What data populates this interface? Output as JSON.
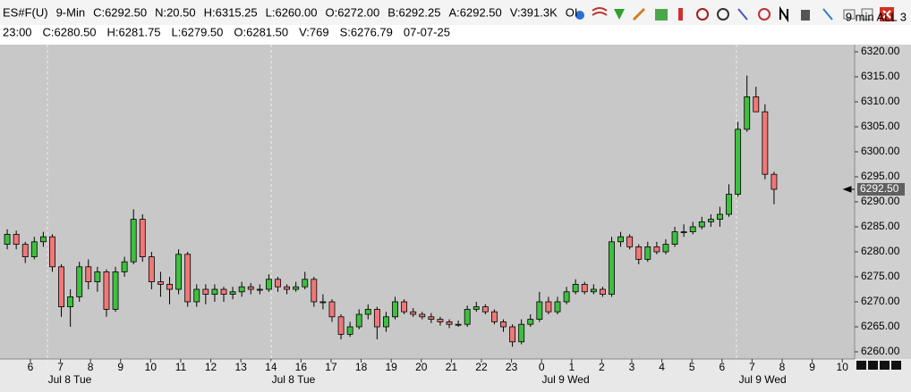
{
  "header": {
    "line1": [
      "ES#F(U)",
      "9-Min",
      "C:6292.50",
      "N:20.50",
      "H:6315.25",
      "L:6260.00",
      "O:6272.00",
      "B:6292.25",
      "A:6292.50",
      "V:391.3K",
      "OI"
    ],
    "line2": [
      "23:00",
      "C:6280.50",
      "H:6281.75",
      "L:6279.50",
      "O:6281.50",
      "V:769",
      "S:6276.79",
      "07-07-25"
    ],
    "right": "9 min ALL 3"
  },
  "chart_data": {
    "type": "candlestick",
    "x": [
      5.23,
      5.53,
      5.83,
      6.13,
      6.43,
      6.73,
      7.03,
      7.33,
      7.63,
      7.93,
      8.23,
      8.53,
      8.83,
      9.13,
      9.43,
      9.73,
      10.03,
      10.33,
      10.63,
      10.93,
      11.23,
      11.53,
      11.83,
      12.13,
      12.43,
      12.73,
      13.03,
      13.33,
      13.63,
      13.93,
      14.23,
      14.53,
      14.83,
      15.13,
      15.43,
      15.73,
      16.03,
      16.33,
      16.63,
      16.93,
      17.23,
      17.53,
      17.83,
      18.13,
      18.43,
      18.73,
      19.03,
      19.33,
      19.63,
      19.93,
      20.23,
      20.53,
      20.83,
      21.13,
      21.43,
      21.73,
      22.03,
      22.33,
      22.63,
      22.93,
      23.23,
      23.53,
      23.83,
      24.13,
      24.43,
      24.73,
      25.03,
      25.33,
      25.63,
      25.93,
      26.23,
      26.53,
      26.83,
      27.13,
      27.43,
      27.73,
      28.03,
      28.33,
      28.63,
      28.93,
      29.23,
      29.53,
      29.83,
      30.13,
      30.43,
      30.73
    ],
    "open": [
      6281.5,
      6283.5,
      6281.5,
      6279,
      6282,
      6283,
      6277,
      6269,
      6271,
      6277,
      6274,
      6276,
      6268.5,
      6276,
      6278,
      6286.5,
      6279,
      6274,
      6273.5,
      6272.5,
      6279.5,
      6270,
      6272.5,
      6271.5,
      6272.5,
      6271.5,
      6272,
      6273,
      6272.5,
      6272.5,
      6274.5,
      6273,
      6272.5,
      6273,
      6274.5,
      6270,
      6270,
      6267,
      6263.5,
      6265,
      6267.5,
      6268.5,
      6265,
      6267,
      6270,
      6268,
      6267.5,
      6267,
      6266.5,
      6266,
      6265.5,
      6265.5,
      6268.5,
      6269,
      6268,
      6266,
      6265,
      6262,
      6265.5,
      6266.5,
      6270,
      6268,
      6270,
      6272,
      6273.5,
      6272,
      6272.5,
      6271.5,
      6282,
      6283,
      6281,
      6278.5,
      6281,
      6280,
      6281.5,
      6284,
      6284,
      6285,
      6286,
      6286.5,
      6287.5,
      6291.5,
      6304.5,
      6311,
      6308,
      6295.5
    ],
    "high": [
      6284.5,
      6284.25,
      6282,
      6283,
      6284,
      6283.5,
      6277.5,
      6272.5,
      6278,
      6278.5,
      6277,
      6276.5,
      6277,
      6279,
      6288.5,
      6287.5,
      6280,
      6276,
      6275,
      6280.5,
      6280,
      6273.5,
      6273.5,
      6273.5,
      6273,
      6273,
      6274,
      6273.75,
      6273.5,
      6275.5,
      6275,
      6273.5,
      6274,
      6276,
      6275,
      6271.5,
      6270.5,
      6267.5,
      6266,
      6268.5,
      6269.5,
      6269,
      6268,
      6271,
      6270.5,
      6268.75,
      6268,
      6267.75,
      6267,
      6266.5,
      6266.25,
      6269.25,
      6270,
      6269.5,
      6268.5,
      6266.5,
      6265.5,
      6266.5,
      6267.5,
      6272,
      6271,
      6271,
      6273,
      6274.5,
      6274,
      6273.5,
      6273,
      6283,
      6284,
      6283.5,
      6281.5,
      6282,
      6282,
      6282.5,
      6285,
      6285.5,
      6286,
      6287,
      6287.5,
      6289,
      6293.5,
      6306,
      6315.25,
      6313,
      6309.5,
      6296
    ],
    "low": [
      6280.5,
      6280.5,
      6277.75,
      6278.5,
      6281,
      6276,
      6267,
      6265,
      6270,
      6272.5,
      6272,
      6267,
      6268,
      6275,
      6277.5,
      6278,
      6272.5,
      6271,
      6269.5,
      6271.5,
      6269,
      6269,
      6269.5,
      6270,
      6270,
      6270.5,
      6271,
      6271.5,
      6271.5,
      6272,
      6272,
      6271.5,
      6272,
      6272.5,
      6269,
      6268.5,
      6266,
      6262.5,
      6263,
      6264.5,
      6266.5,
      6262.5,
      6264,
      6266.5,
      6267.5,
      6267,
      6266.5,
      6265.75,
      6265.25,
      6264.75,
      6265,
      6265,
      6268,
      6267.5,
      6265.5,
      6264,
      6261,
      6261.5,
      6265,
      6266,
      6267.5,
      6267.5,
      6269.5,
      6271.5,
      6271.5,
      6271.5,
      6271,
      6271,
      6281,
      6280.5,
      6277.5,
      6278,
      6279.5,
      6279.5,
      6281,
      6283,
      6283.5,
      6284.5,
      6285,
      6285,
      6287,
      6291,
      6304,
      6308,
      6294.5,
      6289.5
    ],
    "close": [
      6283.5,
      6281.5,
      6279,
      6282,
      6283,
      6277,
      6269,
      6271,
      6277,
      6274,
      6276,
      6268.5,
      6276,
      6278,
      6286.5,
      6279,
      6274,
      6273.5,
      6272.5,
      6279.5,
      6270,
      6272.5,
      6271.5,
      6272.5,
      6271.5,
      6272,
      6273,
      6272.5,
      6272.5,
      6274.5,
      6273,
      6272.5,
      6273,
      6274.5,
      6270,
      6270,
      6267,
      6263.5,
      6265,
      6267.5,
      6268.5,
      6265,
      6267,
      6270,
      6268,
      6267.5,
      6267,
      6266.5,
      6266,
      6265.5,
      6265.5,
      6268.5,
      6269,
      6268,
      6266,
      6265,
      6262,
      6265.5,
      6266.5,
      6270,
      6268,
      6270,
      6272,
      6273.5,
      6272,
      6272.5,
      6271.5,
      6282,
      6283,
      6281,
      6278.5,
      6281,
      6280,
      6281.5,
      6284,
      6284,
      6285,
      6286,
      6286.5,
      6287.5,
      6291.5,
      6304.5,
      6311,
      6308,
      6295.5,
      6292.5
    ],
    "up_color": "#3fbf3f",
    "down_color": "#f07878",
    "xlim": [
      4.99,
      33.41
    ],
    "xticks": [
      6,
      7,
      8,
      9,
      10,
      11,
      12,
      13,
      14,
      {
        "value": 15,
        "label": "16"
      },
      {
        "value": 16,
        "label": "17"
      },
      {
        "value": 17,
        "label": "18"
      },
      {
        "value": 18,
        "label": "19"
      },
      {
        "value": 19,
        "label": "20"
      },
      {
        "value": 20,
        "label": "21"
      },
      {
        "value": 21,
        "label": "22"
      },
      {
        "value": 22,
        "label": "23"
      },
      {
        "value": 23,
        "label": "0"
      },
      {
        "value": 24,
        "label": "1"
      },
      {
        "value": 25,
        "label": "2"
      },
      {
        "value": 26,
        "label": "3"
      },
      {
        "value": 27,
        "label": "4"
      },
      {
        "value": 28,
        "label": "5"
      },
      {
        "value": 29,
        "label": "6"
      },
      {
        "value": 30,
        "label": "7"
      },
      {
        "value": 31,
        "label": "8"
      },
      {
        "value": 32,
        "label": "9"
      },
      {
        "value": 33,
        "label": "10"
      }
    ],
    "day_labels": [
      {
        "value": 7.31,
        "label": "Jul 8 Tue"
      },
      {
        "value": 14.75,
        "label": "Jul 8 Tue"
      },
      {
        "value": 23.8,
        "label": "Jul 9 Wed"
      },
      {
        "value": 30.35,
        "label": "Jul 9 Wed"
      }
    ],
    "session_lines": [
      6.57,
      14.01,
      29.48
    ],
    "ylim": [
      6258.57,
      6321.43
    ],
    "yticks": [
      {
        "value": 6260,
        "label": "6260.00"
      },
      {
        "value": 6265,
        "label": "6265.00"
      },
      {
        "value": 6270,
        "label": "6270.00"
      },
      {
        "value": 6275,
        "label": "6275.00"
      },
      {
        "value": 6280,
        "label": "6280.00"
      },
      {
        "value": 6285,
        "label": "6285.00"
      },
      {
        "value": 6290,
        "label": "6290.00"
      },
      {
        "value": 6295,
        "label": "6295.00"
      },
      {
        "value": 6300,
        "label": "6300.00"
      },
      {
        "value": 6305,
        "label": "6305.00"
      },
      {
        "value": 6310,
        "label": "6310.00"
      },
      {
        "value": 6315,
        "label": "6315.00"
      },
      {
        "value": 6320,
        "label": "6320.00"
      }
    ],
    "last_price": {
      "value": 6292.5,
      "label": "6292.50"
    }
  }
}
